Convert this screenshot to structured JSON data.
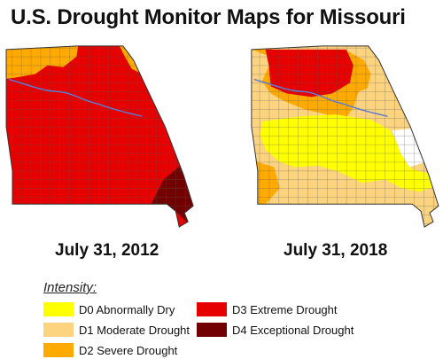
{
  "title": "U.S. Drought Monitor Maps for Missouri",
  "maps": [
    {
      "date": "July 31, 2012"
    },
    {
      "date": "July 31, 2018"
    }
  ],
  "legend": {
    "title": "Intensity:",
    "items": [
      {
        "code": "D0",
        "label": "D0 Abnormally Dry",
        "color": "#ffff00"
      },
      {
        "code": "D1",
        "label": "D1 Moderate Drought",
        "color": "#fcd37f"
      },
      {
        "code": "D2",
        "label": "D2 Severe Drought",
        "color": "#ffaa00"
      },
      {
        "code": "D3",
        "label": "D3 Extreme Drought",
        "color": "#e60000"
      },
      {
        "code": "D4",
        "label": "D4 Exceptional Drought",
        "color": "#730000"
      }
    ]
  },
  "colors": {
    "none": "#ffffff",
    "D0": "#ffff00",
    "D1": "#fcd37f",
    "D2": "#ffaa00",
    "D3": "#e60000",
    "D4": "#730000",
    "county_line": "#555555",
    "river": "#5b7bd5"
  }
}
